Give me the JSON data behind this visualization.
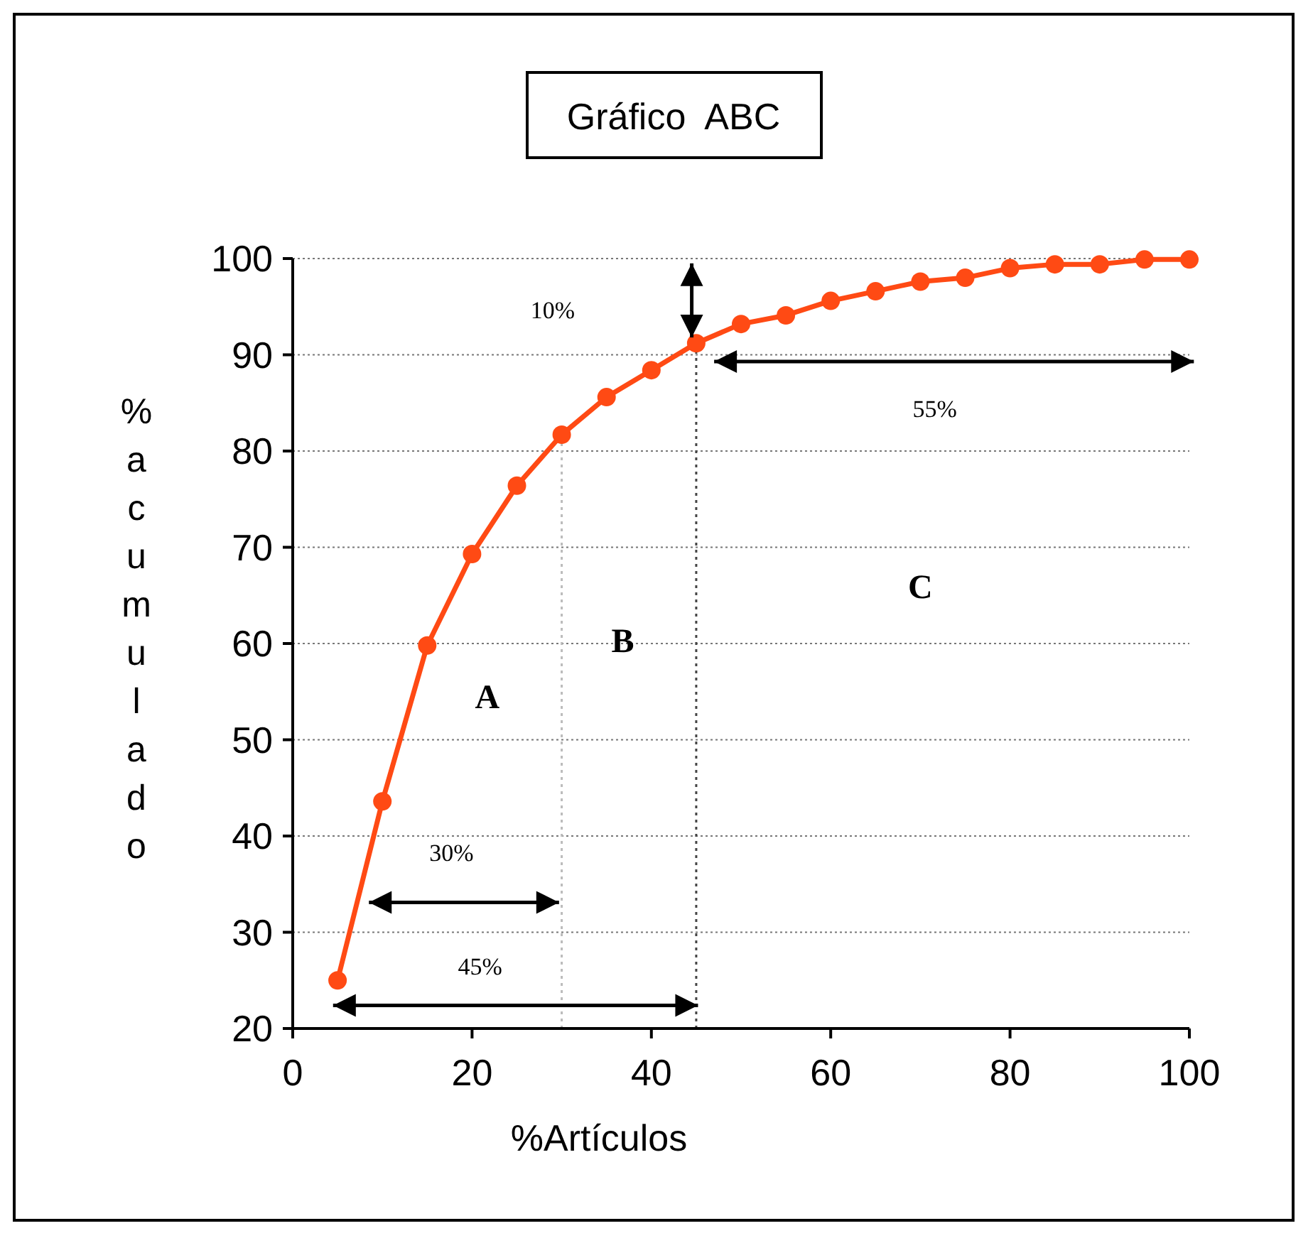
{
  "chart_data": {
    "type": "line",
    "title": "Gráfico  ABC",
    "xlabel": "%Artículos",
    "ylabel": "%acumulado",
    "x": [
      5,
      10,
      15,
      20,
      25,
      30,
      35,
      40,
      45,
      50,
      55,
      60,
      65,
      70,
      75,
      80,
      85,
      90,
      95,
      100
    ],
    "series": [
      {
        "color": "#ff4a14",
        "values": [
          25,
          43.6,
          59.8,
          69.3,
          76.4,
          81.7,
          85.6,
          88.4,
          91.2,
          93.2,
          94.1,
          95.6,
          96.6,
          97.6,
          98,
          99,
          99.4,
          99.4,
          99.9,
          99.9
        ]
      }
    ],
    "xlim": [
      0,
      100
    ],
    "xticks": [
      0,
      20,
      40,
      60,
      80,
      100
    ],
    "ylim": [
      20,
      100
    ],
    "yticks": [
      20,
      30,
      40,
      50,
      60,
      70,
      80,
      90,
      100
    ],
    "grid": "y",
    "marker": "circle",
    "line_style": "solid",
    "ref_lines": [
      {
        "axis": "x",
        "value": 30,
        "color": "#bbbbbb",
        "line_style": "dotted"
      },
      {
        "axis": "x",
        "value": 45,
        "color": "#444444",
        "line_style": "dotted"
      }
    ],
    "annotations": [
      "10%",
      "55%",
      "C",
      "B",
      "A",
      "30%",
      "45%"
    ]
  }
}
